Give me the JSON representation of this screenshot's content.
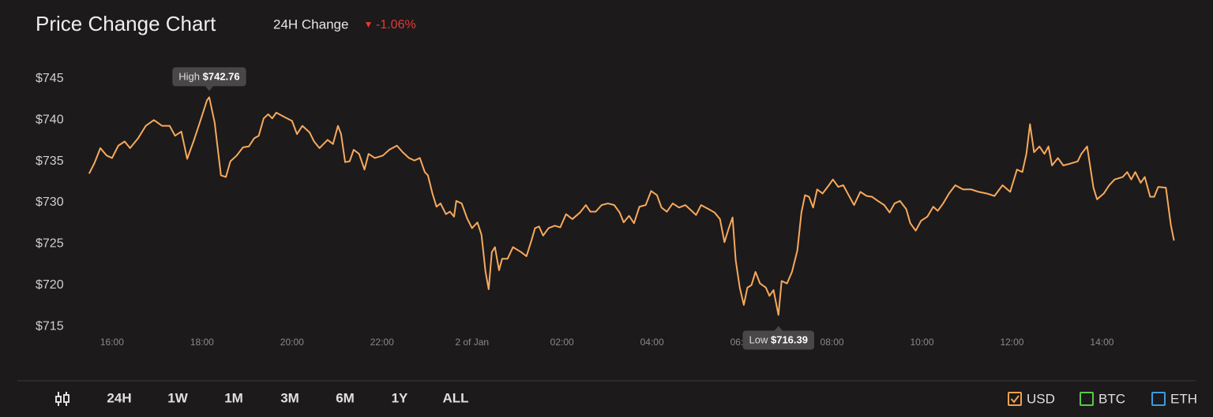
{
  "chart_data": {
    "type": "line",
    "title": "Price Change Chart",
    "change": {
      "label": "24H Change",
      "value": -1.06,
      "value_label": "-1.06%"
    },
    "color": "#f7a95c",
    "x": [
      15.49,
      15.61,
      15.74,
      15.88,
      16.0,
      16.14,
      16.28,
      16.4,
      16.58,
      16.75,
      16.93,
      17.11,
      17.28,
      17.4,
      17.54,
      17.67,
      17.81,
      17.95,
      18.11,
      18.16,
      18.28,
      18.42,
      18.53,
      18.63,
      18.77,
      18.91,
      19.04,
      19.16,
      19.26,
      19.37,
      19.47,
      19.56,
      19.65,
      19.82,
      20.0,
      20.11,
      20.23,
      20.39,
      20.49,
      20.61,
      20.79,
      20.91,
      21.02,
      21.09,
      21.18,
      21.28,
      21.37,
      21.49,
      21.61,
      21.7,
      21.84,
      22.02,
      22.16,
      22.33,
      22.46,
      22.6,
      22.72,
      22.84,
      22.95,
      23.02,
      23.12,
      23.21,
      23.3,
      23.42,
      23.51,
      23.6,
      23.65,
      23.77,
      23.89,
      24.0,
      24.12,
      24.21,
      24.3,
      24.37,
      24.44,
      24.51,
      24.6,
      24.67,
      24.79,
      24.91,
      25.09,
      25.21,
      25.32,
      25.4,
      25.49,
      25.58,
      25.7,
      25.84,
      25.96,
      26.09,
      26.23,
      26.4,
      26.53,
      26.63,
      26.75,
      26.88,
      27.02,
      27.16,
      27.28,
      27.37,
      27.49,
      27.6,
      27.72,
      27.86,
      27.98,
      28.11,
      28.21,
      28.33,
      28.46,
      28.6,
      28.74,
      28.86,
      28.98,
      29.09,
      29.26,
      29.39,
      29.51,
      29.61,
      29.7,
      29.79,
      29.86,
      29.95,
      30.04,
      30.12,
      30.21,
      30.3,
      30.4,
      30.53,
      30.61,
      30.7,
      30.81,
      30.88,
      31.0,
      31.11,
      31.23,
      31.32,
      31.4,
      31.49,
      31.58,
      31.67,
      31.79,
      31.93,
      32.02,
      32.14,
      32.25,
      32.37,
      32.49,
      32.63,
      32.77,
      32.89,
      33.02,
      33.16,
      33.28,
      33.39,
      33.51,
      33.65,
      33.74,
      33.86,
      33.98,
      34.12,
      34.25,
      34.35,
      34.47,
      34.6,
      34.74,
      34.91,
      35.09,
      35.26,
      35.44,
      35.61,
      35.79,
      35.96,
      36.11,
      36.23,
      36.32,
      36.4,
      36.49,
      36.61,
      36.72,
      36.81,
      36.89,
      37.02,
      37.14,
      37.28,
      37.46,
      37.54,
      37.67,
      37.81,
      37.89,
      38.04,
      38.16,
      38.28,
      38.46,
      38.56,
      38.65,
      38.74,
      38.86,
      38.95,
      39.07,
      39.16,
      39.25,
      39.42,
      39.53,
      39.6
    ],
    "values": [
      733.5,
      734.8,
      736.6,
      735.7,
      735.4,
      736.9,
      737.4,
      736.6,
      737.8,
      739.3,
      740.0,
      739.3,
      739.3,
      738.1,
      738.6,
      735.3,
      737.4,
      739.7,
      742.4,
      742.76,
      739.7,
      733.3,
      733.1,
      735.0,
      735.7,
      736.7,
      736.8,
      737.8,
      738.1,
      740.2,
      740.7,
      740.2,
      740.9,
      740.4,
      739.9,
      738.3,
      739.3,
      738.5,
      737.4,
      736.6,
      737.6,
      737.1,
      739.3,
      738.3,
      734.9,
      735.0,
      736.4,
      735.9,
      734.0,
      735.9,
      735.4,
      735.7,
      736.4,
      736.9,
      736.1,
      735.4,
      735.1,
      735.4,
      733.7,
      733.3,
      731.1,
      729.5,
      729.9,
      728.6,
      728.9,
      728.3,
      730.2,
      729.9,
      728.1,
      726.9,
      727.6,
      726.1,
      721.6,
      719.5,
      724.0,
      724.6,
      721.8,
      723.2,
      723.2,
      724.6,
      724.0,
      723.5,
      725.4,
      726.9,
      727.1,
      726.0,
      726.9,
      727.2,
      727.0,
      728.6,
      728.0,
      728.8,
      729.7,
      728.9,
      728.9,
      729.7,
      729.9,
      729.7,
      728.8,
      727.6,
      728.4,
      727.5,
      729.5,
      729.7,
      731.4,
      730.9,
      729.4,
      728.9,
      729.9,
      729.4,
      729.7,
      729.1,
      728.5,
      729.7,
      729.2,
      728.8,
      728.0,
      725.2,
      726.8,
      728.2,
      723.0,
      719.7,
      717.6,
      719.7,
      720.0,
      721.6,
      720.2,
      719.7,
      718.7,
      719.4,
      716.39,
      720.5,
      720.2,
      721.6,
      724.2,
      728.8,
      730.9,
      730.7,
      729.4,
      731.6,
      731.1,
      732.1,
      732.8,
      731.9,
      732.1,
      730.9,
      729.7,
      731.3,
      730.8,
      730.7,
      730.2,
      729.7,
      728.8,
      729.9,
      730.2,
      729.2,
      727.5,
      726.6,
      727.8,
      728.3,
      729.5,
      729.0,
      729.9,
      731.1,
      732.1,
      731.6,
      731.6,
      731.3,
      731.1,
      730.8,
      732.1,
      731.3,
      734.0,
      733.7,
      735.9,
      739.5,
      736.1,
      736.8,
      735.9,
      736.8,
      734.5,
      735.4,
      734.5,
      734.7,
      735.0,
      735.9,
      736.8,
      731.8,
      730.4,
      731.1,
      732.1,
      732.8,
      733.1,
      733.7,
      732.8,
      733.7,
      732.4,
      733.1,
      730.7,
      730.7,
      731.9,
      731.8,
      727.3,
      725.4
    ],
    "xlim": [
      15.3,
      39.8
    ],
    "ylim": [
      713,
      747
    ],
    "xticks": [
      {
        "value": 16,
        "label": "16:00"
      },
      {
        "value": 18,
        "label": "18:00"
      },
      {
        "value": 20,
        "label": "20:00"
      },
      {
        "value": 22,
        "label": "22:00"
      },
      {
        "value": 24,
        "label": "2 of Jan"
      },
      {
        "value": 26,
        "label": "02:00"
      },
      {
        "value": 28,
        "label": "04:00"
      },
      {
        "value": 30,
        "label": "06:00"
      },
      {
        "value": 32,
        "label": "08:00"
      },
      {
        "value": 34,
        "label": "10:00"
      },
      {
        "value": 36,
        "label": "12:00"
      },
      {
        "value": 38,
        "label": "14:00"
      }
    ],
    "yticks": [
      {
        "value": 715,
        "label": "$715"
      },
      {
        "value": 720,
        "label": "$720"
      },
      {
        "value": 725,
        "label": "$725"
      },
      {
        "value": 730,
        "label": "$730"
      },
      {
        "value": 735,
        "label": "$735"
      },
      {
        "value": 740,
        "label": "$740"
      },
      {
        "value": 745,
        "label": "$745"
      }
    ],
    "grid": false,
    "annotations": [
      {
        "label": "High",
        "x": 18.16,
        "value": 742.76,
        "value_label": "$742.76",
        "position": "above"
      },
      {
        "label": "Low",
        "x": 30.81,
        "value": 716.39,
        "value_label": "$716.39",
        "position": "below"
      }
    ],
    "ranges": [
      "24H",
      "1W",
      "1M",
      "3M",
      "6M",
      "1Y",
      "ALL"
    ],
    "active_range_index": 0,
    "currencies": [
      {
        "name": "USD",
        "color": "#f0a050",
        "checked": true
      },
      {
        "name": "BTC",
        "color": "#5cc84a",
        "checked": false
      },
      {
        "name": "ETH",
        "color": "#3d9be0",
        "checked": false
      }
    ]
  }
}
